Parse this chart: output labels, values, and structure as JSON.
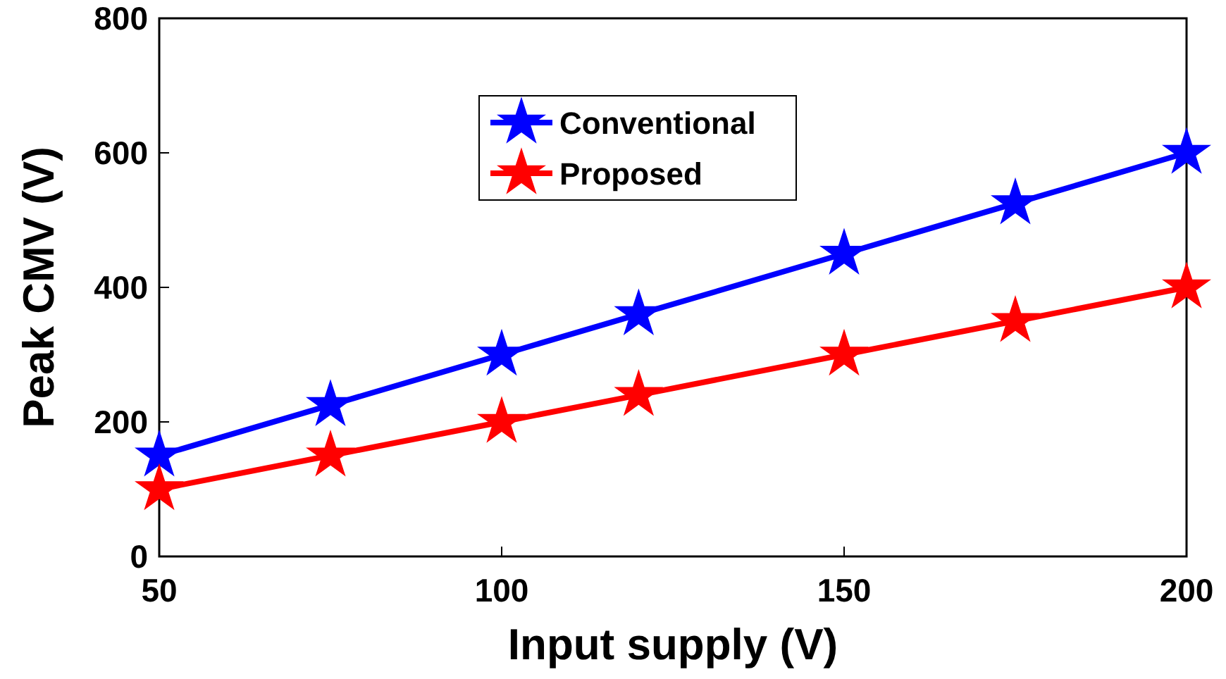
{
  "chart_data": {
    "type": "line",
    "xlabel": "Input supply (V)",
    "ylabel": "Peak CMV (V)",
    "x": [
      50,
      75,
      100,
      120,
      150,
      175,
      200
    ],
    "series": [
      {
        "name": "Conventional",
        "color": "#0000ff",
        "values": [
          150,
          225,
          300,
          360,
          450,
          525,
          600
        ]
      },
      {
        "name": "Proposed",
        "color": "#ff0000",
        "values": [
          100,
          150,
          200,
          240,
          300,
          350,
          400
        ]
      }
    ],
    "xlim": [
      50,
      200
    ],
    "xticks": [
      50,
      100,
      150,
      200
    ],
    "ylim": [
      0,
      800
    ],
    "yticks": [
      0,
      200,
      400,
      600,
      800
    ],
    "grid": false,
    "legend": "top",
    "marker": "star",
    "line_style": "solid"
  }
}
